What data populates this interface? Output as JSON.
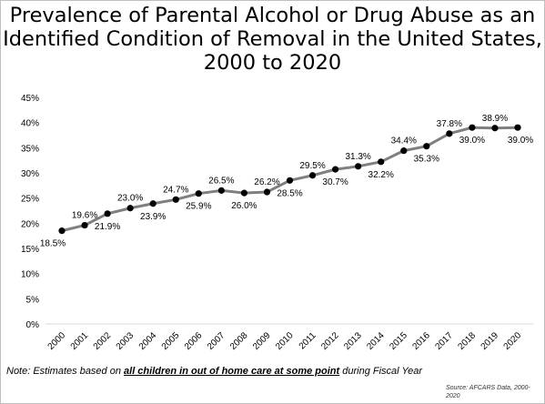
{
  "chart_data": {
    "type": "line",
    "title_lines": [
      "Prevalence of Parental Alcohol or Drug Abuse as an",
      "Identified Condition of Removal in the United States,",
      "2000 to 2020"
    ],
    "xlabel": "",
    "ylabel": "",
    "y_ticks": [
      "0%",
      "5%",
      "10%",
      "15%",
      "20%",
      "25%",
      "30%",
      "35%",
      "40%",
      "45%"
    ],
    "ylim": [
      0,
      45
    ],
    "grid": false,
    "legend": "none",
    "line_color": "#7f7f7f",
    "marker_color": "#000000",
    "categories": [
      "2000",
      "2001",
      "2002",
      "2003",
      "2004",
      "2005",
      "2006",
      "2007",
      "2008",
      "2009",
      "2010",
      "2011",
      "2012",
      "2013",
      "2014",
      "2015",
      "2016",
      "2017",
      "2018",
      "2019",
      "2020"
    ],
    "values": [
      18.5,
      19.6,
      21.9,
      23.0,
      23.9,
      24.7,
      25.9,
      26.5,
      26.0,
      26.2,
      28.5,
      29.5,
      30.7,
      31.3,
      32.2,
      34.4,
      35.3,
      37.8,
      39.0,
      38.9,
      39.0
    ],
    "data_labels": [
      "18.5%",
      "19.6%",
      "21.9%",
      "23.0%",
      "23.9%",
      "24.7%",
      "25.9%",
      "26.5%",
      "26.0%",
      "26.2%",
      "28.5%",
      "29.5%",
      "30.7%",
      "31.3%",
      "32.2%",
      "34.4%",
      "35.3%",
      "37.8%",
      "39.0%",
      "38.9%",
      "39.0%"
    ],
    "label_positions": [
      "below",
      "above",
      "below",
      "above",
      "below",
      "above",
      "below",
      "above",
      "below",
      "above",
      "below",
      "above",
      "below",
      "above",
      "below",
      "above",
      "below",
      "above",
      "below",
      "above",
      "below"
    ]
  },
  "note": {
    "prefix": "Note: Estimates based on ",
    "emphasis": "all children in out of home care at some point",
    "suffix": " during Fiscal Year"
  },
  "source": "Source: AFCARS Data, 2000-2020"
}
